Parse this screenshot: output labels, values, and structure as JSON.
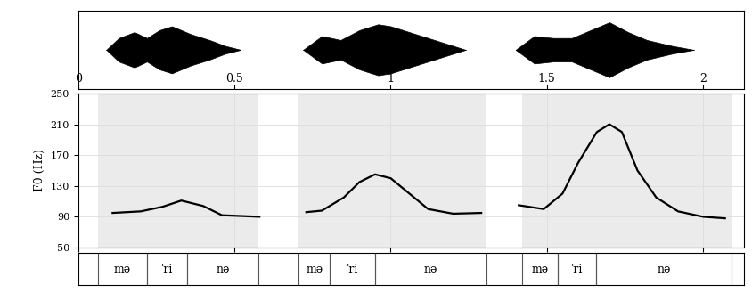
{
  "chart_data": {
    "type": "line",
    "y_label": "F0 (Hz)",
    "xlim": [
      0,
      2.13
    ],
    "xticks": [
      0,
      0.5,
      1,
      1.5,
      2
    ],
    "ylim": [
      50,
      250
    ],
    "yticks": [
      50,
      90,
      130,
      170,
      210,
      250
    ],
    "color": "#000000",
    "series": [
      {
        "x": [
          0.11,
          0.2,
          0.27,
          0.33,
          0.4,
          0.46,
          0.58
        ],
        "values": [
          95,
          97,
          103,
          111,
          104,
          92,
          90
        ]
      },
      {
        "x": [
          0.73,
          0.78,
          0.85,
          0.9,
          0.95,
          1.0,
          1.06,
          1.12,
          1.2,
          1.29
        ],
        "values": [
          96,
          98,
          115,
          135,
          145,
          140,
          120,
          100,
          94,
          95
        ]
      },
      {
        "x": [
          1.41,
          1.49,
          1.55,
          1.6,
          1.66,
          1.7,
          1.74,
          1.79,
          1.85,
          1.92,
          2.0,
          2.07
        ],
        "values": [
          105,
          100,
          120,
          160,
          200,
          210,
          200,
          150,
          115,
          97,
          90,
          88
        ]
      }
    ],
    "waveform": {
      "ylim": [
        -1,
        1
      ],
      "series": [
        {
          "x": [
            0.09,
            0.13,
            0.18,
            0.22,
            0.26,
            0.3,
            0.36,
            0.42,
            0.47,
            0.52
          ],
          "values": [
            0.0,
            0.3,
            0.45,
            0.3,
            0.5,
            0.6,
            0.4,
            0.25,
            0.1,
            0.0
          ]
        },
        {
          "x": [
            0.72,
            0.78,
            0.84,
            0.9,
            0.96,
            1.0,
            1.06,
            1.12,
            1.18,
            1.24
          ],
          "values": [
            0.0,
            0.35,
            0.25,
            0.5,
            0.65,
            0.6,
            0.45,
            0.3,
            0.15,
            0.0
          ]
        },
        {
          "x": [
            1.4,
            1.46,
            1.52,
            1.58,
            1.64,
            1.7,
            1.76,
            1.82,
            1.9,
            1.97
          ],
          "values": [
            0.0,
            0.35,
            0.3,
            0.3,
            0.5,
            0.7,
            0.45,
            0.25,
            0.1,
            0.0
          ]
        }
      ]
    },
    "segments": [
      {
        "label": "mə",
        "start": 0.063,
        "end": 0.22
      },
      {
        "label": "ˈri",
        "start": 0.22,
        "end": 0.349
      },
      {
        "label": "nə",
        "start": 0.349,
        "end": 0.577
      },
      {
        "label": "mə",
        "start": 0.706,
        "end": 0.806
      },
      {
        "label": "ˈri",
        "start": 0.806,
        "end": 0.949
      },
      {
        "label": "nə",
        "start": 0.949,
        "end": 1.306
      },
      {
        "label": "mə",
        "start": 1.42,
        "end": 1.534
      },
      {
        "label": "ˈri",
        "start": 1.534,
        "end": 1.657
      },
      {
        "label": "nə",
        "start": 1.657,
        "end": 2.09
      }
    ]
  }
}
